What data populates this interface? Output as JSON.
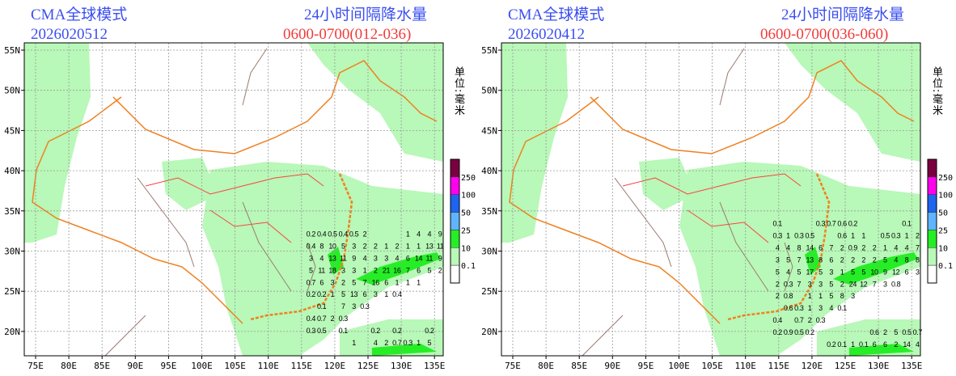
{
  "panels": [
    {
      "model_label": "CMA全球模式",
      "init_time": "2026020512",
      "title": "24小时间隔降水量",
      "period": "0600-0700(012-036)",
      "grid_rows": [
        {
          "lat": 32.1,
          "lon_start": 116.4,
          "values": [
            0.2,
            0.4,
            0.5,
            0.4,
            0.5,
            2,
            null,
            null,
            null,
            1,
            4,
            4,
            9
          ]
        },
        {
          "lat": 30.6,
          "lon_start": 116.4,
          "values": [
            0.4,
            8,
            10,
            5,
            3,
            2,
            2,
            1,
            2,
            1,
            1,
            13,
            11
          ]
        },
        {
          "lat": 29.1,
          "lon_start": 116.4,
          "values": [
            3,
            4,
            13,
            11,
            9,
            4,
            3,
            3,
            4,
            6,
            14,
            11,
            9
          ]
        },
        {
          "lat": 27.6,
          "lon_start": 116.4,
          "values": [
            5,
            11,
            18,
            3,
            3,
            1,
            2,
            21,
            16,
            7,
            6,
            5,
            2
          ]
        },
        {
          "lat": 26.1,
          "lon_start": 116.4,
          "values": [
            0.7,
            6,
            3,
            2,
            5,
            7,
            16,
            6,
            1,
            1,
            1
          ]
        },
        {
          "lat": 24.6,
          "lon_start": 116.4,
          "values": [
            0.2,
            0.2,
            1,
            5,
            13,
            6,
            3,
            1,
            0.4
          ]
        },
        {
          "lat": 23.1,
          "lon_start": 116.4,
          "values": [
            null,
            0.1,
            null,
            7,
            3,
            0.3
          ]
        },
        {
          "lat": 21.6,
          "lon_start": 116.4,
          "values": [
            0.4,
            0.7,
            2,
            0.3
          ]
        },
        {
          "lat": 20.1,
          "lon_start": 116.4,
          "values": [
            0.3,
            0.5,
            null,
            0.1,
            null,
            null,
            0.2,
            null,
            0.2,
            null,
            null,
            0.2
          ]
        },
        {
          "lat": 18.6,
          "lon_start": 116.4,
          "values": [
            null,
            null,
            null,
            null,
            1,
            null,
            4,
            2,
            0.7,
            0.3,
            1,
            5
          ]
        }
      ]
    },
    {
      "model_label": "CMA全球模式",
      "init_time": "2026020412",
      "title": "24小时间隔降水量",
      "period": "0600-0700(036-060)",
      "grid_rows": [
        {
          "lat": 33.4,
          "lon_start": 114.8,
          "values": [
            0.1,
            null,
            null,
            null,
            0.3,
            0.7,
            0.6,
            0.2,
            null,
            null,
            null,
            null,
            0.1
          ]
        },
        {
          "lat": 31.9,
          "lon_start": 114.8,
          "values": [
            0.3,
            1,
            0.3,
            0.5,
            null,
            null,
            0.6,
            1,
            1,
            null,
            0.5,
            0.3,
            1,
            2
          ]
        },
        {
          "lat": 30.4,
          "lon_start": 114.8,
          "values": [
            4,
            4,
            8,
            14,
            6,
            7,
            2,
            0.9,
            2,
            2,
            1,
            4,
            4,
            7
          ]
        },
        {
          "lat": 28.9,
          "lon_start": 114.8,
          "values": [
            3,
            5,
            7,
            13,
            8,
            6,
            2,
            2,
            2,
            2,
            5,
            4,
            8,
            8
          ]
        },
        {
          "lat": 27.4,
          "lon_start": 114.8,
          "values": [
            5,
            4,
            5,
            17,
            5,
            3,
            1,
            5,
            5,
            10,
            9,
            12,
            6,
            3
          ]
        },
        {
          "lat": 25.9,
          "lon_start": 114.8,
          "values": [
            2,
            0.3,
            7,
            3,
            3,
            5,
            2,
            24,
            12,
            7,
            3,
            0.8
          ]
        },
        {
          "lat": 24.4,
          "lon_start": 114.8,
          "values": [
            2,
            0.8,
            null,
            1,
            1,
            5,
            8,
            3
          ]
        },
        {
          "lat": 22.9,
          "lon_start": 114.8,
          "values": [
            null,
            0.6,
            0.3,
            1,
            3,
            4,
            0.1
          ]
        },
        {
          "lat": 21.4,
          "lon_start": 114.8,
          "values": [
            0.4,
            null,
            0.7,
            2,
            0.3
          ]
        },
        {
          "lat": 19.9,
          "lon_start": 114.8,
          "values": [
            0.2,
            0.9,
            0.5,
            0.2,
            null,
            null,
            null,
            null,
            null,
            0.6,
            2,
            5,
            0.5,
            0.7
          ]
        },
        {
          "lat": 18.4,
          "lon_start": 114.8,
          "values": [
            null,
            null,
            null,
            null,
            null,
            0.2,
            0.1,
            1,
            0.1,
            6,
            6,
            2,
            14,
            4
          ]
        }
      ]
    }
  ],
  "axes": {
    "lon_ticks": [
      "75E",
      "80E",
      "85E",
      "90E",
      "95E",
      "100E",
      "105E",
      "110E",
      "115E",
      "120E",
      "125E",
      "130E",
      "135E"
    ],
    "lat_ticks": [
      "55N",
      "50N",
      "45N",
      "40N",
      "35N",
      "30N",
      "25N",
      "20N"
    ]
  },
  "legend": {
    "unit_label": "单位:毫米",
    "levels": [
      "250",
      "100",
      "50",
      "25",
      "10",
      "0.1"
    ],
    "colors": [
      "#7a0040",
      "#ff00ee",
      "#1e64f0",
      "#5fb4ff",
      "#26ee26",
      "#b8f8b8",
      "#ffffff"
    ]
  },
  "colors": {
    "land_border": "#9a7a70",
    "coast": "#f08020",
    "province": "#ff4040",
    "grid": "#999999"
  }
}
